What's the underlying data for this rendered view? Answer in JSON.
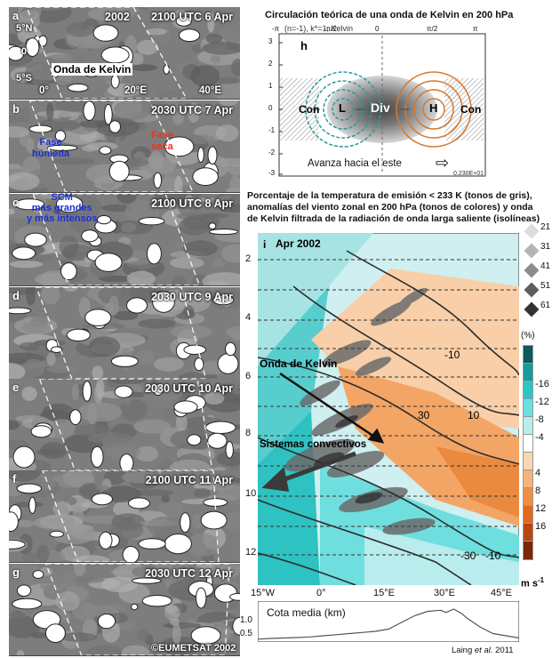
{
  "satellite": {
    "panels": [
      {
        "letter": "a",
        "time": "2100 UTC 6 Apr"
      },
      {
        "letter": "b",
        "time": "2030 UTC 7 Apr"
      },
      {
        "letter": "c",
        "time": "2100 UTC  8 Apr"
      },
      {
        "letter": "d",
        "time": "2030 UTC 9 Apr"
      },
      {
        "letter": "e",
        "time": "2030 UTC 10 Apr"
      },
      {
        "letter": "f",
        "time": "2100 UTC 11 Apr"
      },
      {
        "letter": "g",
        "time": "2030 UTC 12 Apr"
      }
    ],
    "year": "2002",
    "lat_labels": [
      "5°N",
      "0",
      "5°S"
    ],
    "lon_labels": [
      "0°",
      "20°E",
      "40°E"
    ],
    "kelvin_label": "Onda de Kelvin",
    "wet_phase": "Fase\nhúmeda",
    "dry_phase": "Fase\nseca",
    "scm_label": "SCM\nmás grandes\ny más intensos",
    "copyright": "©EUMETSAT 2002"
  },
  "theory": {
    "title": "Circulación teórica de una onda de Kelvin en 200 hPa",
    "panel_letter": "h",
    "subtitle": "(n=-1), k*=1, Kelvin",
    "labels": {
      "con": "Con",
      "low": "L",
      "div": "Div",
      "high": "H",
      "con2": "Con"
    },
    "advance": "Avanza hacia el este",
    "stamp": "0.230E+01",
    "y_ticks": [
      "3",
      "2",
      "1",
      "0",
      "-1",
      "-2",
      "-3"
    ],
    "x_ticks": [
      "-π",
      "-π/2",
      "0",
      "π/2",
      "π"
    ]
  },
  "hov": {
    "caption": "Porcentaje de la temperatura de emisión < 233 K (tonos de gris),\nanomalías del viento zonal en 200 hPa (tonos de colores) y onda\nde Kelvin filtrada de la radiación de onda larga saliente (isolíneas)",
    "panel_letter": "i",
    "panel_title": "Apr 2002",
    "day_ticks": [
      "2",
      "4",
      "6",
      "8",
      "10",
      "12"
    ],
    "lon_ticks": [
      "15°W",
      "0°",
      "15°E",
      "30°E",
      "45°E"
    ],
    "kelvin_label": "Onda de Kelvin",
    "convective_label": "Sistemas convectivos",
    "contour_labels": [
      "-10",
      "30",
      "10",
      "-30",
      "-10"
    ],
    "unit": "m s",
    "unit_sup": "-1",
    "pct_label": "(%)",
    "gray_legend": [
      "21",
      "31",
      "41",
      "51",
      "61"
    ],
    "color_legend": {
      "ticks": [
        "-16",
        "-12",
        "-8",
        "-4",
        "4",
        "8",
        "12",
        "16"
      ],
      "colors": [
        "#0f5a5a",
        "#179b9b",
        "#2bc5c5",
        "#6fdede",
        "#b9eded",
        "#ffffff",
        "#fad7b3",
        "#f5b47a",
        "#ee8f43",
        "#e06a1c",
        "#b7470f",
        "#7b2606"
      ]
    },
    "elevation_label": "Cota media (km)",
    "elev_ticks": [
      "1.0",
      "0.5"
    ],
    "credit_prefix": "Laing ",
    "credit_etal": "et al.",
    "credit_suffix": " 2011"
  },
  "elevation_profile": {
    "x": [
      0,
      0.05,
      0.1,
      0.15,
      0.2,
      0.25,
      0.3,
      0.35,
      0.4,
      0.45,
      0.5,
      0.55,
      0.6,
      0.65,
      0.7,
      0.72,
      0.75,
      0.78,
      0.8,
      0.85,
      0.9,
      0.95,
      1.0
    ],
    "y": [
      0.05,
      0.08,
      0.1,
      0.12,
      0.15,
      0.2,
      0.25,
      0.3,
      0.35,
      0.4,
      0.5,
      0.8,
      1.1,
      1.3,
      1.35,
      1.25,
      1.4,
      1.2,
      1.0,
      0.6,
      0.3,
      0.2,
      0.1
    ]
  }
}
